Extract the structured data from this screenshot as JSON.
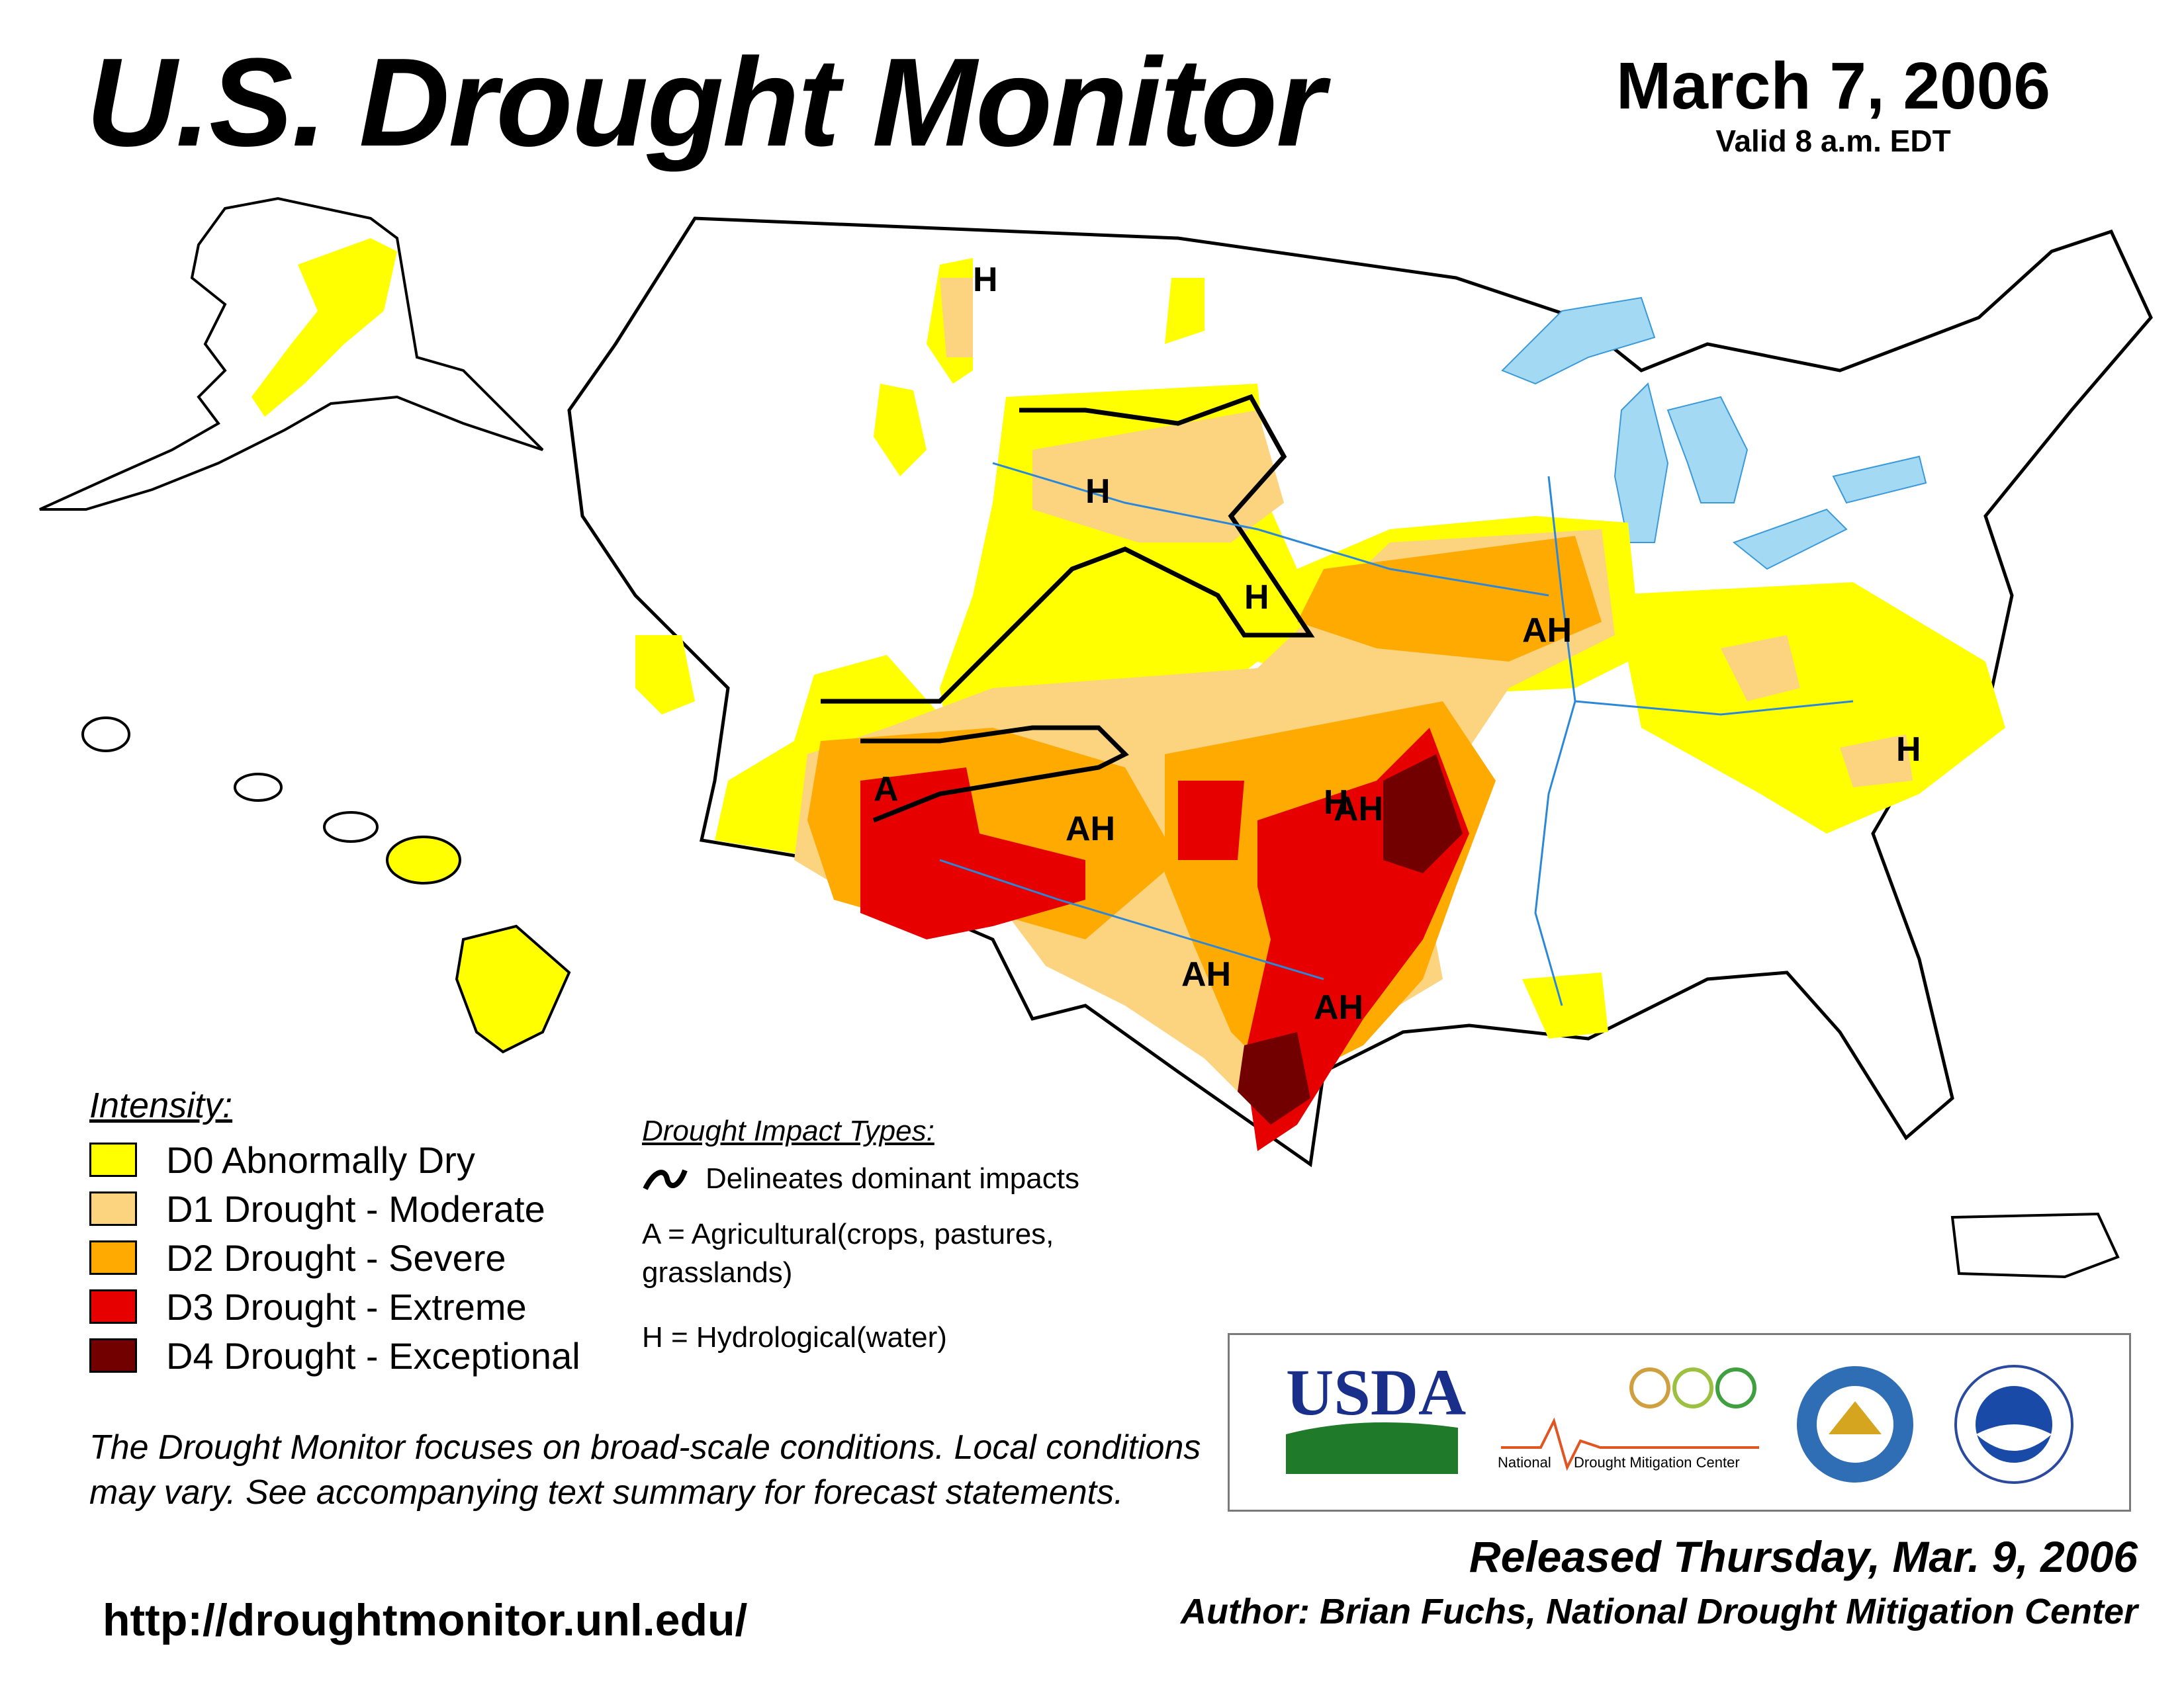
{
  "header": {
    "title": "U.S. Drought Monitor",
    "date": "March 7, 2006",
    "valid_time": "Valid 8 a.m. EDT"
  },
  "map": {
    "impact_labels": [
      "H",
      "H",
      "H",
      "H",
      "AH",
      "A",
      "AH",
      "AH",
      "AH",
      "AH",
      "H"
    ]
  },
  "legend": {
    "intensity_heading": "Intensity:",
    "items": [
      {
        "label": "D0 Abnormally Dry",
        "color": "#ffff00"
      },
      {
        "label": "D1 Drought - Moderate",
        "color": "#fcd37f"
      },
      {
        "label": "D2 Drought - Severe",
        "color": "#ffaa00"
      },
      {
        "label": "D3 Drought - Extreme",
        "color": "#e60000"
      },
      {
        "label": "D4 Drought - Exceptional",
        "color": "#730000"
      }
    ]
  },
  "impact_legend": {
    "heading": "Drought Impact Types:",
    "delineates": "Delineates dominant impacts",
    "agricultural": "A = Agricultural(crops, pastures, grasslands)",
    "hydrological": "H = Hydrological(water)"
  },
  "disclaimer": "The Drought Monitor focuses on broad-scale conditions. Local conditions may vary. See accompanying text summary for forecast statements.",
  "url": "http://droughtmonitor.unl.edu/",
  "logos": {
    "usda": "USDA",
    "ndmc_left": "National",
    "ndmc_right": "Drought Mitigation Center"
  },
  "footer": {
    "released": "Released Thursday, Mar. 9, 2006",
    "author": "Author: Brian Fuchs, National Drought Mitigation Center"
  }
}
